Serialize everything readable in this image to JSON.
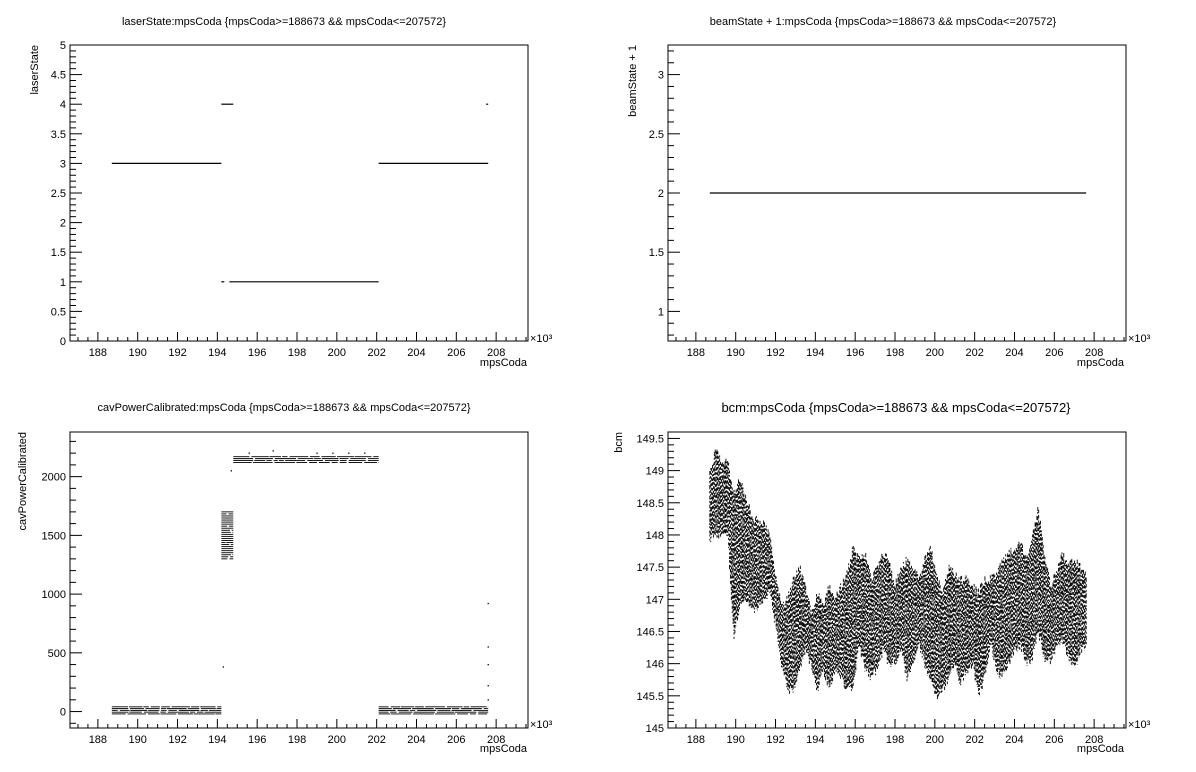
{
  "page": {
    "title": ""
  },
  "chart_data": [
    {
      "type": "scatter",
      "title": "laserState:mpsCoda {mpsCoda>=188673 && mpsCoda<=207572}",
      "xlabel": "mpsCoda",
      "ylabel": "laserState",
      "x_unit_label": "×10³",
      "xlim": [
        186.6,
        209.6
      ],
      "ylim": [
        0,
        5
      ],
      "x_ticks": [
        188,
        190,
        192,
        194,
        196,
        198,
        200,
        202,
        204,
        206,
        208
      ],
      "y_ticks": [
        0,
        0.5,
        1,
        1.5,
        2,
        2.5,
        3,
        3.5,
        4,
        4.5,
        5
      ],
      "series": [
        {
          "segments": [
            {
              "x": [
                188.7,
                194.2
              ],
              "y": 3
            },
            {
              "x": [
                202.1,
                207.6
              ],
              "y": 3
            },
            {
              "x": [
                194.6,
                202.1
              ],
              "y": 1
            },
            {
              "x": [
                194.2,
                194.35
              ],
              "y": 1
            },
            {
              "x": [
                194.2,
                194.8
              ],
              "y": 4
            },
            {
              "x": [
                207.5,
                207.6
              ],
              "y": 4
            }
          ]
        }
      ]
    },
    {
      "type": "scatter",
      "title": "beamState + 1:mpsCoda {mpsCoda>=188673 && mpsCoda<=207572}",
      "xlabel": "mpsCoda",
      "ylabel": "beamState + 1",
      "x_unit_label": "×10³",
      "xlim": [
        186.6,
        209.6
      ],
      "ylim": [
        0.75,
        3.25
      ],
      "x_ticks": [
        188,
        190,
        192,
        194,
        196,
        198,
        200,
        202,
        204,
        206,
        208
      ],
      "y_ticks": [
        1,
        1.5,
        2,
        2.5,
        3
      ],
      "series": [
        {
          "segments": [
            {
              "x": [
                188.7,
                207.6
              ],
              "y": 2
            }
          ]
        }
      ]
    },
    {
      "type": "scatter",
      "title": "cavPowerCalibrated:mpsCoda {mpsCoda>=188673 && mpsCoda<=207572}",
      "xlabel": "mpsCoda",
      "ylabel": "cavPowerCalibrated",
      "x_unit_label": "×10³",
      "xlim": [
        186.6,
        209.6
      ],
      "ylim": [
        -140,
        2380
      ],
      "x_ticks": [
        188,
        190,
        192,
        194,
        196,
        198,
        200,
        202,
        204,
        206,
        208
      ],
      "y_ticks": [
        0,
        500,
        1000,
        1500,
        2000
      ],
      "series": [
        {
          "bands": [
            {
              "x": [
                188.7,
                194.2
              ],
              "y": [
                -20,
                40
              ]
            },
            {
              "x": [
                202.1,
                207.6
              ],
              "y": [
                -20,
                40
              ]
            },
            {
              "x": [
                194.8,
                202.1
              ],
              "y": [
                2120,
                2170
              ]
            },
            {
              "x": [
                194.2,
                194.8
              ],
              "y": [
                1300,
                1700
              ]
            }
          ],
          "points": [
            {
              "x": 194.3,
              "y": 380
            },
            {
              "x": 207.6,
              "y": 920
            },
            {
              "x": 207.6,
              "y": 550
            },
            {
              "x": 207.6,
              "y": 400
            },
            {
              "x": 207.6,
              "y": 220
            },
            {
              "x": 207.6,
              "y": 100
            },
            {
              "x": 194.7,
              "y": 2050
            },
            {
              "x": 195.6,
              "y": 2200
            },
            {
              "x": 196.8,
              "y": 2220
            },
            {
              "x": 199.0,
              "y": 2200
            },
            {
              "x": 199.8,
              "y": 2200
            },
            {
              "x": 200.6,
              "y": 2200
            },
            {
              "x": 201.4,
              "y": 2200
            }
          ]
        }
      ]
    },
    {
      "type": "scatter",
      "title": "bcm:mpsCoda {mpsCoda>=188673 && mpsCoda<=207572}",
      "xlabel": "mpsCoda",
      "ylabel": "bcm",
      "x_unit_label": "×10³",
      "xlim": [
        186.6,
        209.6
      ],
      "ylim": [
        145,
        149.6
      ],
      "x_ticks": [
        188,
        190,
        192,
        194,
        196,
        198,
        200,
        202,
        204,
        206,
        208
      ],
      "y_ticks": [
        145,
        145.5,
        146,
        146.5,
        147,
        147.5,
        148,
        148.5,
        149,
        149.5
      ],
      "series": [
        {
          "envelope": {
            "x": [
              188.7,
              189.0,
              189.3,
              189.6,
              189.9,
              190.2,
              190.5,
              190.8,
              191.1,
              191.4,
              191.7,
              192.0,
              192.3,
              192.6,
              192.9,
              193.2,
              193.5,
              193.8,
              194.1,
              194.4,
              194.7,
              195.0,
              195.3,
              195.6,
              195.9,
              196.2,
              196.5,
              196.8,
              197.1,
              197.4,
              197.7,
              198.0,
              198.3,
              198.6,
              198.9,
              199.2,
              199.5,
              199.8,
              200.1,
              200.4,
              200.7,
              201.0,
              201.3,
              201.6,
              201.9,
              202.2,
              202.5,
              202.8,
              203.1,
              203.4,
              203.7,
              204.0,
              204.3,
              204.6,
              204.9,
              205.2,
              205.5,
              205.8,
              206.1,
              206.4,
              206.7,
              207.0,
              207.3,
              207.6
            ],
            "low": [
              147.9,
              148.0,
              148.0,
              148.0,
              146.4,
              146.9,
              147.0,
              146.8,
              146.9,
              147.0,
              147.1,
              146.6,
              146.0,
              145.6,
              145.6,
              145.9,
              146.2,
              146.0,
              145.6,
              145.9,
              145.6,
              145.9,
              145.8,
              145.6,
              145.6,
              146.3,
              145.9,
              145.8,
              145.9,
              146.2,
              146.0,
              146.0,
              146.2,
              145.8,
              146.0,
              146.3,
              146.0,
              145.7,
              145.5,
              145.6,
              145.8,
              146.0,
              145.7,
              145.9,
              146.0,
              145.5,
              145.8,
              146.3,
              145.9,
              145.8,
              146.0,
              146.2,
              146.3,
              146.0,
              146.1,
              146.5,
              146.1,
              146.0,
              146.3,
              146.4,
              146.1,
              145.9,
              146.2,
              146.3
            ],
            "high": [
              149.0,
              149.3,
              149.1,
              149.2,
              148.6,
              148.9,
              148.6,
              148.3,
              148.2,
              148.2,
              148.0,
              147.4,
              146.9,
              147.0,
              147.3,
              147.5,
              147.2,
              146.8,
              147.1,
              146.9,
              147.2,
              147.0,
              147.2,
              147.4,
              147.8,
              147.6,
              147.7,
              147.3,
              147.5,
              147.7,
              147.6,
              147.2,
              147.5,
              147.6,
              147.5,
              147.3,
              147.6,
              147.8,
              147.3,
              147.1,
              147.5,
              147.4,
              147.3,
              147.3,
              147.2,
              147.1,
              147.3,
              147.3,
              147.4,
              147.6,
              147.7,
              147.8,
              147.9,
              147.6,
              148.0,
              148.4,
              147.7,
              147.2,
              147.4,
              147.7,
              147.5,
              147.6,
              147.5,
              147.4
            ]
          }
        }
      ]
    }
  ]
}
